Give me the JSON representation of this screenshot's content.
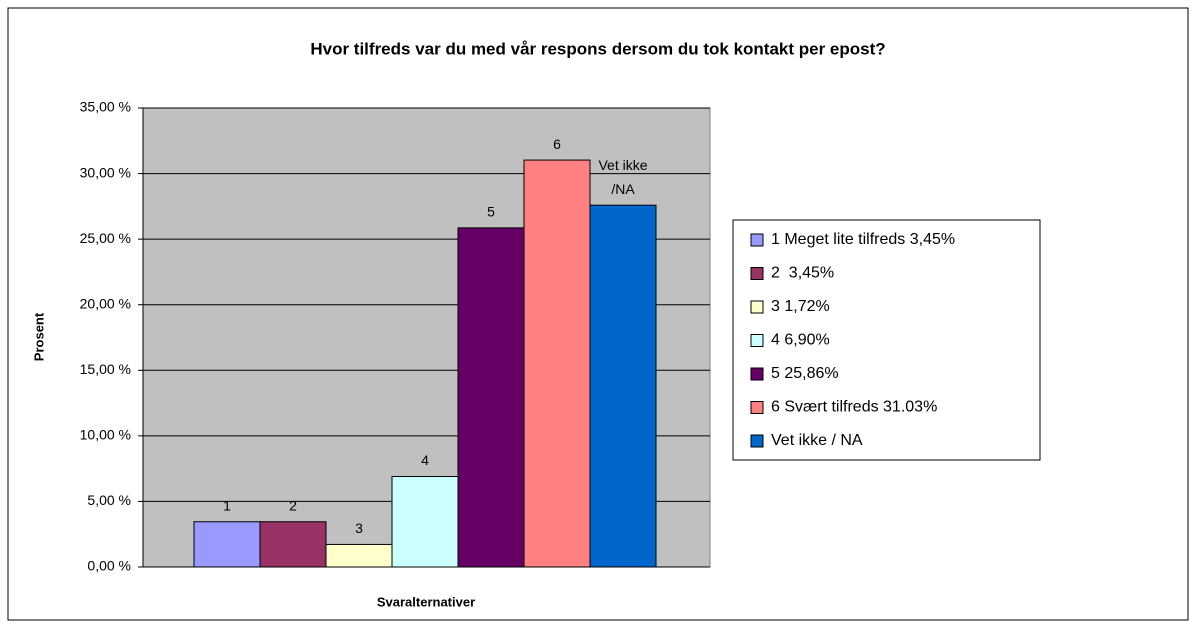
{
  "chart_data": {
    "type": "bar",
    "title": "Hvor tilfreds var du med vår respons dersom du tok kontakt per epost?",
    "y_label": "Prosent",
    "x_label": "Svaralternativer",
    "series": [
      {
        "name": "1 Meget lite tilfreds 3,45%",
        "color": "#9999ff",
        "values": [
          3.45
        ],
        "label": [
          "1"
        ]
      },
      {
        "name": "2  3,45%",
        "color": "#993366",
        "values": [
          3.45
        ],
        "label": [
          "2"
        ]
      },
      {
        "name": "3 1,72%",
        "color": "#ffffcc",
        "values": [
          1.72
        ],
        "label": [
          "3"
        ]
      },
      {
        "name": "4 6,90%",
        "color": "#ccffff",
        "values": [
          6.9
        ],
        "label": [
          "4"
        ]
      },
      {
        "name": "5 25,86%",
        "color": "#660066",
        "values": [
          25.86
        ],
        "label": [
          "5"
        ]
      },
      {
        "name": "6 Svært tilfreds 31.03%",
        "color": "#ff8080",
        "values": [
          31.03
        ],
        "label": [
          "6"
        ]
      },
      {
        "name": "Vet ikke / NA",
        "color": "#0066cc",
        "values": [
          27.59
        ],
        "label": [
          "Vet ikke",
          "/NA"
        ]
      }
    ],
    "ylim": [
      0,
      35
    ],
    "yticks": [
      {
        "value": 0,
        "label": "0,00 %"
      },
      {
        "value": 5,
        "label": "5,00 %"
      },
      {
        "value": 10,
        "label": "10,00 %"
      },
      {
        "value": 15,
        "label": "15,00 %"
      },
      {
        "value": 20,
        "label": "20,00 %"
      },
      {
        "value": 25,
        "label": "25,00 %"
      },
      {
        "value": 30,
        "label": "30,00 %"
      },
      {
        "value": 35,
        "label": "35,00 %"
      }
    ],
    "grid": true,
    "legend": "right"
  }
}
